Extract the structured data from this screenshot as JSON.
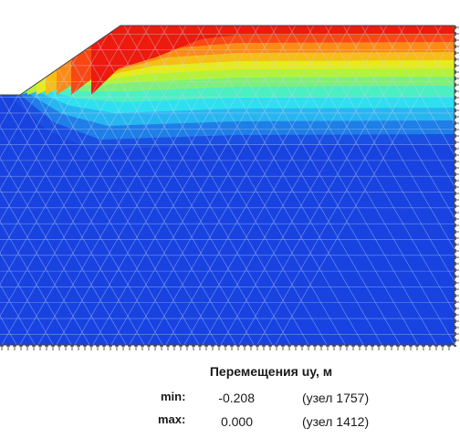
{
  "legend": {
    "title": "Перемещения uy, м",
    "min_label": "min:",
    "min_value": "-0.208",
    "min_node": "(узел 1757)",
    "max_label": "max:",
    "max_value": "0.000",
    "max_node": "(узел 1412)"
  },
  "palette": {
    "red": "#ee1a0d",
    "orange_red": "#f94814",
    "orange": "#fb8b19",
    "yellow_orange": "#f6be16",
    "yellow": "#e6ec18",
    "yellow_green": "#b4f23a",
    "light_green": "#7ef07a",
    "aqua": "#4cefc2",
    "cyan": "#2ee0ef",
    "light_blue": "#28b6f1",
    "blue_mid": "#1f7ee8",
    "blue": "#1b4fe2",
    "deep_blue": "#1843e0",
    "mesh_line": "#c9d6f2",
    "boundary": "#333333"
  }
}
